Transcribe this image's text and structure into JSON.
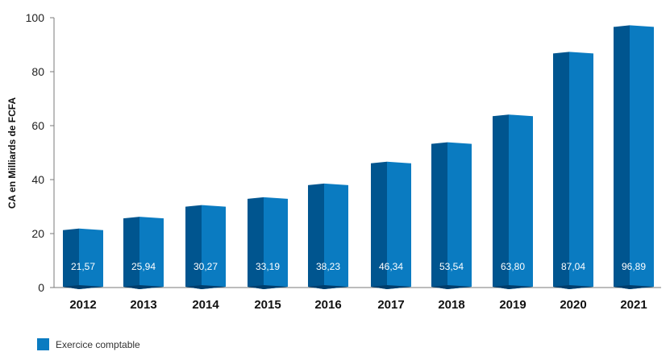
{
  "chart_data": {
    "type": "bar",
    "ylabel": "CA en Milliards de FCFA",
    "xlabel": "",
    "ylim": [
      0,
      100
    ],
    "yticks": [
      0,
      20,
      40,
      60,
      80,
      100
    ],
    "categories": [
      "2012",
      "2013",
      "2014",
      "2015",
      "2016",
      "2017",
      "2018",
      "2019",
      "2020",
      "2021"
    ],
    "series": [
      {
        "name": "Exercice comptable",
        "values": [
          21.57,
          25.94,
          30.27,
          33.19,
          38.23,
          46.34,
          53.54,
          63.8,
          87.04,
          96.89
        ],
        "labels": [
          "21,57",
          "25,94",
          "30,27",
          "33,19",
          "38,23",
          "46,34",
          "53,54",
          "63,80",
          "87,04",
          "96,89"
        ]
      }
    ],
    "grid": false,
    "legend_position": "bottom-left",
    "colors": {
      "front": "#0a7bc1",
      "side": "#00558f",
      "base": "#003d6b",
      "axis": "#7a7a7a"
    }
  }
}
